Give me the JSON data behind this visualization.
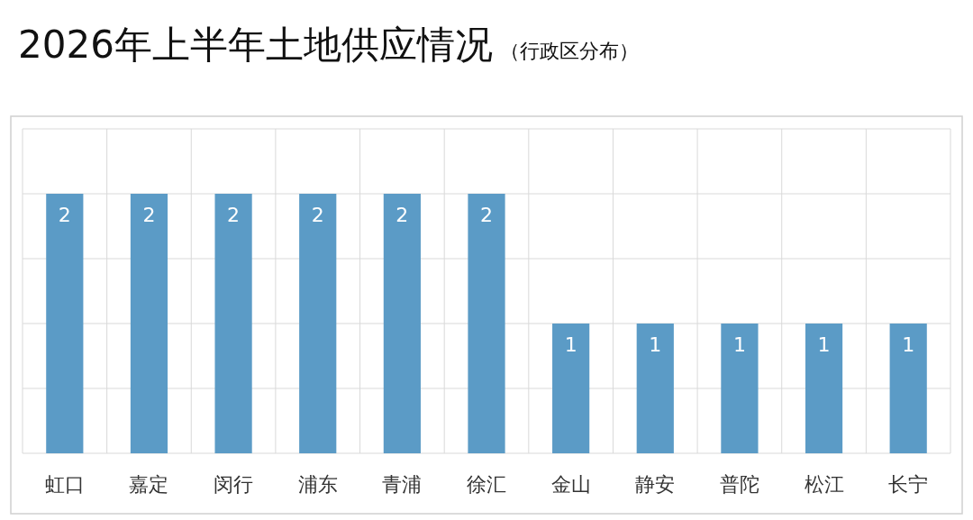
{
  "chart_data": {
    "type": "bar",
    "title": "2026年上半年土地供应情况",
    "subtitle": "（行政区分布）",
    "categories": [
      "虹口",
      "嘉定",
      "闵行",
      "浦东",
      "青浦",
      "徐汇",
      "金山",
      "静安",
      "普陀",
      "松江",
      "长宁"
    ],
    "values": [
      2,
      2,
      2,
      2,
      2,
      2,
      1,
      1,
      1,
      1,
      1
    ],
    "color": "#5b9bc6",
    "data_labels": true,
    "ylim": [
      0,
      2.5
    ],
    "yticks": [
      {
        "value": 0,
        "label": null
      },
      {
        "value": 0.5,
        "label": null
      },
      {
        "value": 1,
        "label": null
      },
      {
        "value": 1.5,
        "label": null
      },
      {
        "value": 2,
        "label": null
      },
      {
        "value": 2.5,
        "label": null
      }
    ],
    "grid": true,
    "tick_labels": "x"
  }
}
